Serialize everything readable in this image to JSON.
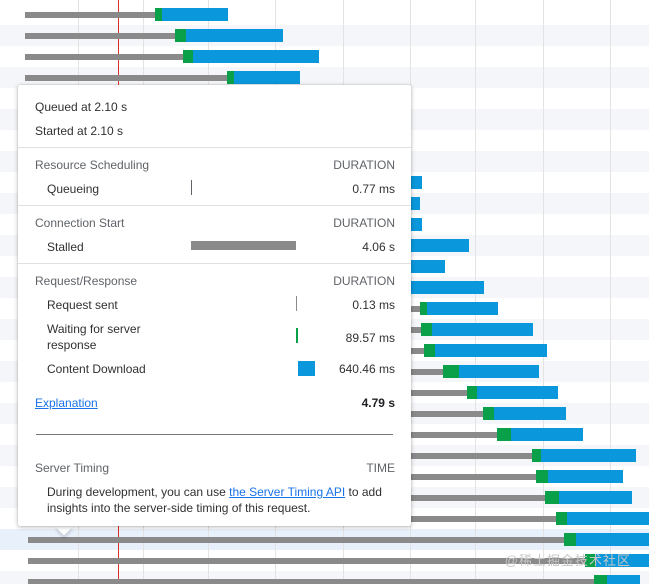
{
  "tooltip": {
    "queued_at": "Queued at 2.10 s",
    "started_at": "Started at 2.10 s",
    "duration_label": "DURATION",
    "sections": [
      {
        "title": "Resource Scheduling",
        "rows": [
          {
            "label": "Queueing",
            "value": "0.77 ms",
            "bar_color": "#5f6368"
          }
        ]
      },
      {
        "title": "Connection Start",
        "rows": [
          {
            "label": "Stalled",
            "value": "4.06 s",
            "bar_color": "#8a8a8a"
          }
        ]
      },
      {
        "title": "Request/Response",
        "rows": [
          {
            "label": "Request sent",
            "value": "0.13 ms",
            "bar_color": "#8a8a8a"
          },
          {
            "label": "Waiting for server response",
            "label_line1": "Waiting for server",
            "label_line2": "response",
            "value": "89.57 ms",
            "bar_color": "#0aa04a"
          },
          {
            "label": "Content Download",
            "value": "640.46 ms",
            "bar_color": "#0b97dc"
          }
        ]
      }
    ],
    "explanation_link": "Explanation",
    "total": "4.79 s",
    "server_timing": {
      "title": "Server Timing",
      "time_label": "TIME",
      "text_before": "During development, you can use ",
      "link_text": "the Server Timing API",
      "text_after_line1": " to add",
      "text_line2": "insights into the server-side timing of this request."
    }
  },
  "watermark": "@稀土掘金技术社区",
  "colors": {
    "waiting": "#8a8a8a",
    "ttfb": "#0aa04a",
    "download": "#0b97dc",
    "time_marker": "#d93025",
    "link": "#1a73e8"
  }
}
